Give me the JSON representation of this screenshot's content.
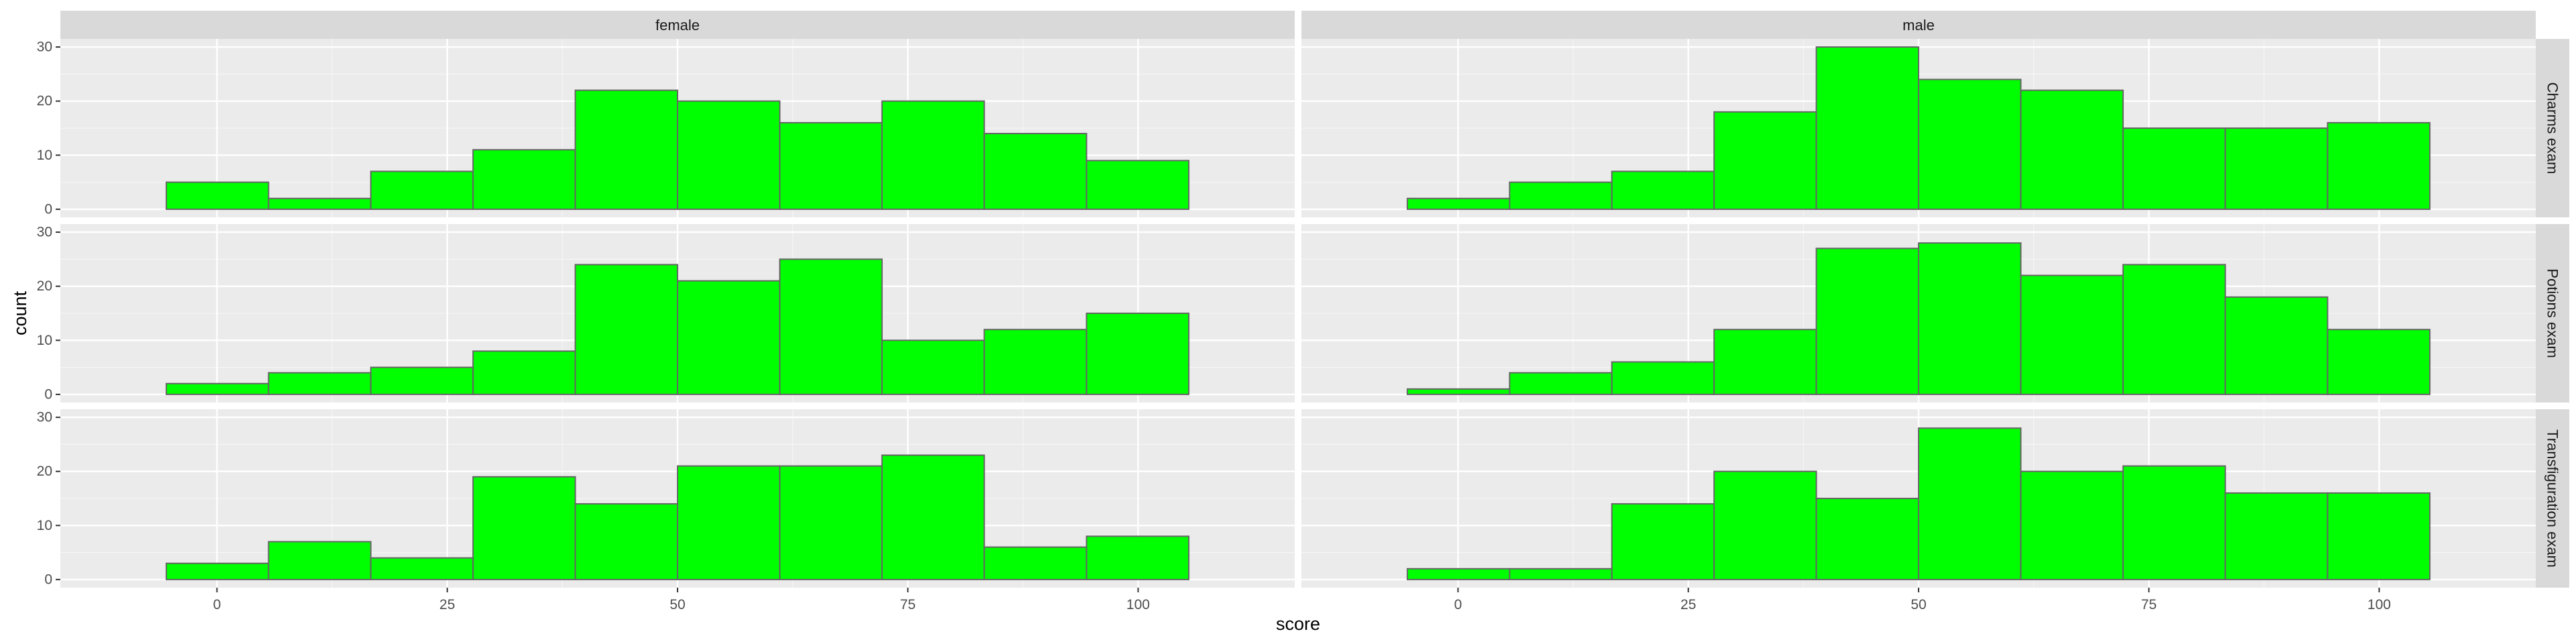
{
  "chart_data": {
    "type": "bar",
    "subtype": "faceted-histogram",
    "xlabel": "score",
    "ylabel": "count",
    "column_facets": [
      "female",
      "male"
    ],
    "row_facets": [
      "Charms exam",
      "Potions exam",
      "Transfiguration exam"
    ],
    "bin_edges": [
      -5.5,
      5.6,
      16.7,
      27.8,
      38.9,
      50,
      61.1,
      72.2,
      83.3,
      94.4,
      105.5
    ],
    "xlim": [
      -17,
      117
    ],
    "ylim": [
      -1.5,
      31.5
    ],
    "x_ticks": [
      0,
      25,
      50,
      75,
      100
    ],
    "x_tick_labels": [
      "0",
      "25",
      "50",
      "75",
      "100"
    ],
    "y_ticks": [
      0,
      10,
      20,
      30
    ],
    "y_tick_labels": [
      "0",
      "10",
      "20",
      "30"
    ],
    "grid": true,
    "colors": {
      "bar_fill": "#00ff00",
      "bar_outline": "#666666",
      "panel_background": "#ebebeb",
      "grid_major": "#ffffff",
      "strip_background": "#d9d9d9"
    },
    "panels": [
      {
        "row": "Charms exam",
        "col": "female",
        "counts": [
          5,
          2,
          7,
          11,
          22,
          20,
          16,
          20,
          14,
          9
        ]
      },
      {
        "row": "Charms exam",
        "col": "male",
        "counts": [
          2,
          5,
          7,
          18,
          30,
          24,
          22,
          15,
          15,
          16
        ]
      },
      {
        "row": "Potions exam",
        "col": "female",
        "counts": [
          2,
          4,
          5,
          8,
          24,
          21,
          25,
          10,
          12,
          15
        ]
      },
      {
        "row": "Potions exam",
        "col": "male",
        "counts": [
          1,
          4,
          6,
          12,
          27,
          28,
          22,
          24,
          18,
          12
        ]
      },
      {
        "row": "Transfiguration exam",
        "col": "female",
        "counts": [
          3,
          7,
          4,
          19,
          14,
          21,
          21,
          23,
          6,
          8
        ]
      },
      {
        "row": "Transfiguration exam",
        "col": "male",
        "counts": [
          2,
          2,
          14,
          20,
          15,
          28,
          20,
          21,
          16,
          16
        ]
      }
    ]
  }
}
